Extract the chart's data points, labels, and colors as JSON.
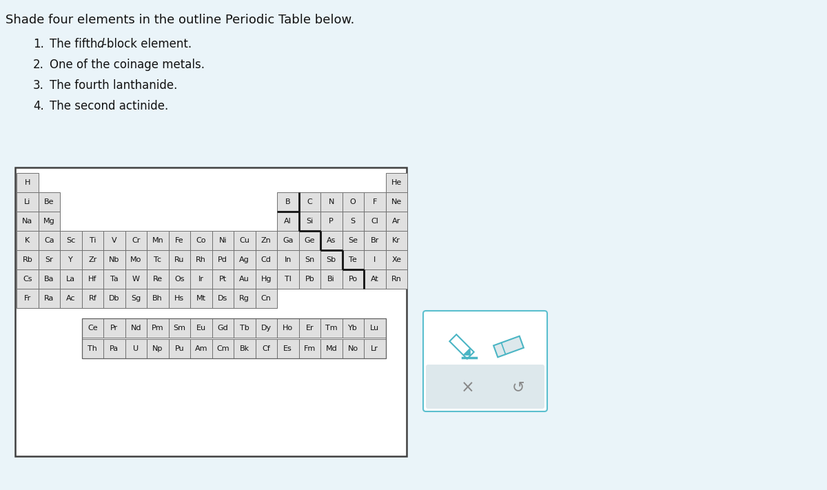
{
  "title": "Shade four elements in the outline Periodic Table below.",
  "bg_color": "#eaf4f9",
  "cell_bg": "#e0e0e0",
  "cell_border": "#707070",
  "table_border": "#404040",
  "font_size": 8.0,
  "main_elements": [
    [
      0,
      0,
      "H"
    ],
    [
      17,
      0,
      "He"
    ],
    [
      0,
      1,
      "Li"
    ],
    [
      1,
      1,
      "Be"
    ],
    [
      12,
      1,
      "B"
    ],
    [
      13,
      1,
      "C"
    ],
    [
      14,
      1,
      "N"
    ],
    [
      15,
      1,
      "O"
    ],
    [
      16,
      1,
      "F"
    ],
    [
      17,
      1,
      "Ne"
    ],
    [
      0,
      2,
      "Na"
    ],
    [
      1,
      2,
      "Mg"
    ],
    [
      12,
      2,
      "Al"
    ],
    [
      13,
      2,
      "Si"
    ],
    [
      14,
      2,
      "P"
    ],
    [
      15,
      2,
      "S"
    ],
    [
      16,
      2,
      "Cl"
    ],
    [
      17,
      2,
      "Ar"
    ],
    [
      0,
      3,
      "K"
    ],
    [
      1,
      3,
      "Ca"
    ],
    [
      2,
      3,
      "Sc"
    ],
    [
      3,
      3,
      "Ti"
    ],
    [
      4,
      3,
      "V"
    ],
    [
      5,
      3,
      "Cr"
    ],
    [
      6,
      3,
      "Mn"
    ],
    [
      7,
      3,
      "Fe"
    ],
    [
      8,
      3,
      "Co"
    ],
    [
      9,
      3,
      "Ni"
    ],
    [
      10,
      3,
      "Cu"
    ],
    [
      11,
      3,
      "Zn"
    ],
    [
      12,
      3,
      "Ga"
    ],
    [
      13,
      3,
      "Ge"
    ],
    [
      14,
      3,
      "As"
    ],
    [
      15,
      3,
      "Se"
    ],
    [
      16,
      3,
      "Br"
    ],
    [
      17,
      3,
      "Kr"
    ],
    [
      0,
      4,
      "Rb"
    ],
    [
      1,
      4,
      "Sr"
    ],
    [
      2,
      4,
      "Y"
    ],
    [
      3,
      4,
      "Zr"
    ],
    [
      4,
      4,
      "Nb"
    ],
    [
      5,
      4,
      "Mo"
    ],
    [
      6,
      4,
      "Tc"
    ],
    [
      7,
      4,
      "Ru"
    ],
    [
      8,
      4,
      "Rh"
    ],
    [
      9,
      4,
      "Pd"
    ],
    [
      10,
      4,
      "Ag"
    ],
    [
      11,
      4,
      "Cd"
    ],
    [
      12,
      4,
      "In"
    ],
    [
      13,
      4,
      "Sn"
    ],
    [
      14,
      4,
      "Sb"
    ],
    [
      15,
      4,
      "Te"
    ],
    [
      16,
      4,
      "I"
    ],
    [
      17,
      4,
      "Xe"
    ],
    [
      0,
      5,
      "Cs"
    ],
    [
      1,
      5,
      "Ba"
    ],
    [
      2,
      5,
      "La"
    ],
    [
      3,
      5,
      "Hf"
    ],
    [
      4,
      5,
      "Ta"
    ],
    [
      5,
      5,
      "W"
    ],
    [
      6,
      5,
      "Re"
    ],
    [
      7,
      5,
      "Os"
    ],
    [
      8,
      5,
      "Ir"
    ],
    [
      9,
      5,
      "Pt"
    ],
    [
      10,
      5,
      "Au"
    ],
    [
      11,
      5,
      "Hg"
    ],
    [
      12,
      5,
      "Tl"
    ],
    [
      13,
      5,
      "Pb"
    ],
    [
      14,
      5,
      "Bi"
    ],
    [
      15,
      5,
      "Po"
    ],
    [
      16,
      5,
      "At"
    ],
    [
      17,
      5,
      "Rn"
    ],
    [
      0,
      6,
      "Fr"
    ],
    [
      1,
      6,
      "Ra"
    ],
    [
      2,
      6,
      "Ac"
    ],
    [
      3,
      6,
      "Rf"
    ],
    [
      4,
      6,
      "Db"
    ],
    [
      5,
      6,
      "Sg"
    ],
    [
      6,
      6,
      "Bh"
    ],
    [
      7,
      6,
      "Hs"
    ],
    [
      8,
      6,
      "Mt"
    ],
    [
      9,
      6,
      "Ds"
    ],
    [
      10,
      6,
      "Rg"
    ],
    [
      11,
      6,
      "Cn"
    ]
  ],
  "lanthanides": [
    "Ce",
    "Pr",
    "Nd",
    "Pm",
    "Sm",
    "Eu",
    "Gd",
    "Tb",
    "Dy",
    "Ho",
    "Er",
    "Tm",
    "Yb",
    "Lu"
  ],
  "actinides": [
    "Th",
    "Pa",
    "U",
    "Np",
    "Pu",
    "Am",
    "Cm",
    "Bk",
    "Cf",
    "Es",
    "Fm",
    "Md",
    "No",
    "Lr"
  ],
  "panel_color": "#5bbfce",
  "panel_lower_color": "#dde8ec",
  "icon_color": "#4ab5c4"
}
